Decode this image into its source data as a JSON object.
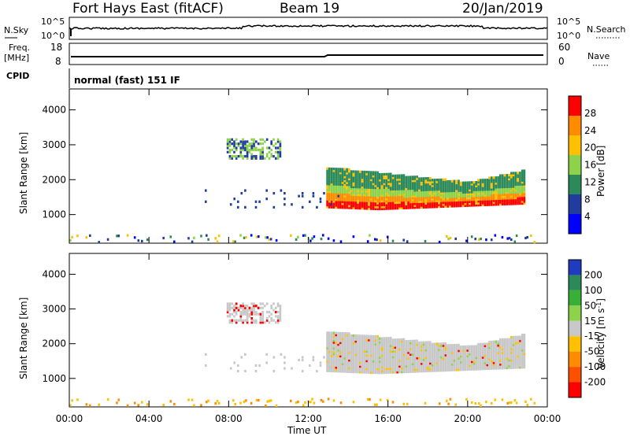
{
  "header": {
    "site": "Fort Hays East (fitACF)",
    "beam": "Beam 19",
    "date": "20/Jan/2019"
  },
  "panels": {
    "nsky_label": "N.Sky",
    "nsky_ticks": [
      "10^5",
      "10^0"
    ],
    "nsearch_label": "N.Search",
    "nsearch_ticks": [
      "10^5",
      "10^0"
    ],
    "freq_label": "Freq.",
    "freq_unit": "[MHz]",
    "freq_ticks": [
      "18",
      "8"
    ],
    "nave_label": "Nave",
    "nave_ticks": [
      "60",
      "0"
    ],
    "cpid_label": "CPID",
    "cpid_value": "normal (fast) 151 IF"
  },
  "chart_data": [
    {
      "type": "heatmap",
      "name": "power",
      "ylabel": "Slant Range [km]",
      "yticks": [
        1000,
        2000,
        3000,
        4000
      ],
      "ylim": [
        180,
        4600
      ],
      "colorbar_label": "Power [dB]",
      "colorbar_ticks": [
        4,
        8,
        12,
        16,
        20,
        24,
        28
      ],
      "colorbar_range": [
        0,
        32
      ],
      "colors": [
        "#0000ff",
        "#1f3c9e",
        "#2c8a5a",
        "#8cd24a",
        "#ffc000",
        "#ff8c00",
        "#ff0000"
      ],
      "regions": [
        {
          "t0": 7.9,
          "t1": 10.6,
          "r0": 2550,
          "r1": 3150,
          "level": "low-mid"
        },
        {
          "t0": 6.8,
          "t1": 13.6,
          "r0": 1150,
          "r1": 1700,
          "level": "low"
        },
        {
          "t0": 12.9,
          "t1": 22.8,
          "r0": 1050,
          "r1": 2350,
          "level": "high"
        },
        {
          "t0": 0,
          "t1": 23.8,
          "r0": 180,
          "r1": 400,
          "level": "scatter"
        }
      ]
    },
    {
      "type": "heatmap",
      "name": "velocity",
      "ylabel": "Slant Range [km]",
      "yticks": [
        1000,
        2000,
        3000,
        4000
      ],
      "ylim": [
        180,
        4600
      ],
      "colorbar_label": "Velocity [m s",
      "colorbar_label_exp": "-1",
      "colorbar_ticks": [
        "200",
        "100",
        "50",
        "15",
        "-15",
        "-50",
        "-100",
        "-200"
      ],
      "colors": [
        "#1f3cc0",
        "#2c8a5a",
        "#38b038",
        "#8cd24a",
        "#c8c8c8",
        "#ffc000",
        "#ff8c00",
        "#ff5000",
        "#ff0000"
      ]
    }
  ],
  "xaxis": {
    "label": "Time UT",
    "ticks": [
      "00:00",
      "04:00",
      "08:00",
      "12:00",
      "16:00",
      "20:00",
      "00:00"
    ],
    "xlim": [
      0,
      24
    ]
  }
}
